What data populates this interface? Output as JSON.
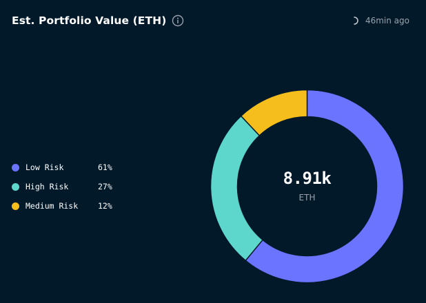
{
  "header": {
    "title": "Est. Portfolio Value (ETH)",
    "info_icon": "info-icon",
    "updated_icon": "spinner-icon",
    "updated_text": "46min ago"
  },
  "legend": {
    "items": [
      {
        "label": "Low Risk",
        "percent": "61%",
        "color": "#6b74ff"
      },
      {
        "label": "High Risk",
        "percent": "27%",
        "color": "#5dd6cc"
      },
      {
        "label": "Medium Risk",
        "percent": "12%",
        "color": "#f5be1c"
      }
    ]
  },
  "donut": {
    "center_value": "8.91k",
    "center_unit": "ETH",
    "background_color": "#02192a",
    "separator_color": "#02192a"
  }
}
